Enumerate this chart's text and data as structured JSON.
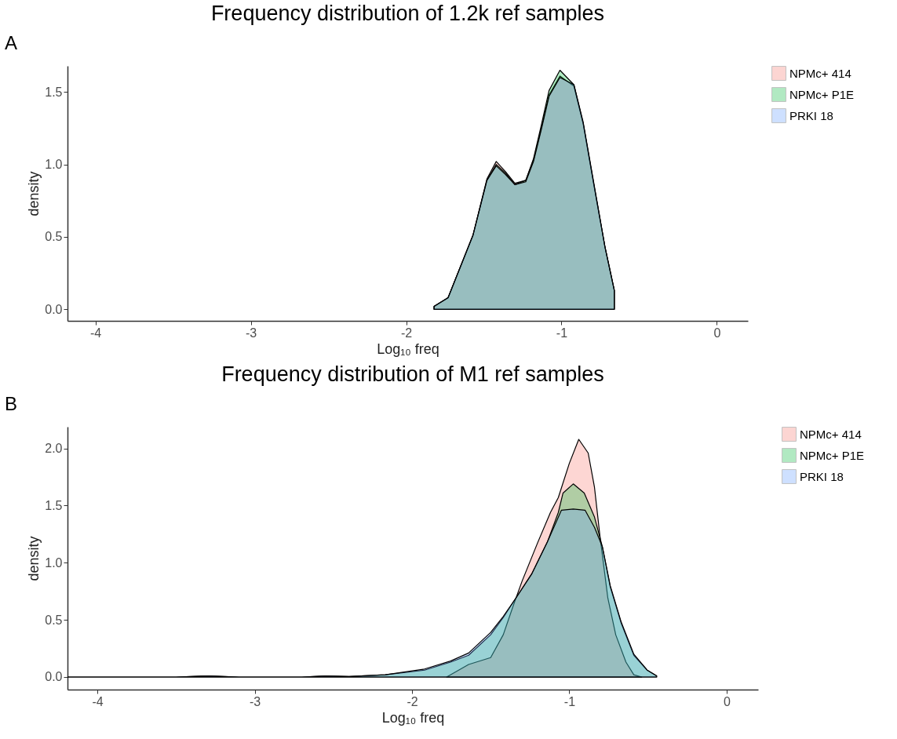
{
  "chart_data": [
    {
      "type": "area",
      "title": "Frequency distribution of 1.2k ref samples",
      "xlabel": "Log₁₀ freq",
      "ylabel": "density",
      "annotations": [
        "A"
      ],
      "legend": "right",
      "x": [
        -1.82,
        -1.73,
        -1.57,
        -1.48,
        -1.42,
        -1.36,
        -1.3,
        -1.23,
        -1.18,
        -1.13,
        -1.08,
        -1.01,
        -0.92,
        -0.86,
        -0.79,
        -0.72,
        -0.66
      ],
      "series": [
        {
          "name": "NPMc+ 414",
          "color": "#f8766d",
          "values": [
            0.02,
            0.08,
            0.51,
            0.9,
            1.02,
            0.95,
            0.87,
            0.89,
            1.03,
            1.25,
            1.48,
            1.61,
            1.54,
            1.28,
            0.85,
            0.43,
            0.13
          ]
        },
        {
          "name": "NPMc+ P1E",
          "color": "#00ba38",
          "values": [
            0.02,
            0.08,
            0.51,
            0.89,
            1.0,
            0.94,
            0.86,
            0.89,
            1.04,
            1.27,
            1.51,
            1.65,
            1.55,
            1.28,
            0.85,
            0.43,
            0.13
          ]
        },
        {
          "name": "PRKI 18",
          "color": "#619cff",
          "values": [
            0.02,
            0.08,
            0.51,
            0.89,
            0.99,
            0.93,
            0.86,
            0.88,
            1.02,
            1.24,
            1.47,
            1.6,
            1.55,
            1.29,
            0.86,
            0.43,
            0.13
          ]
        }
      ],
      "xlim": [
        -4.18,
        0.2
      ],
      "xticks": [
        -4,
        -3,
        -2,
        -1,
        0
      ],
      "ylim": [
        -0.08,
        1.68
      ],
      "yticks": [
        {
          "value": 0,
          "label": "0.0"
        },
        {
          "value": 0.5,
          "label": "0.5"
        },
        {
          "value": 1,
          "label": "1.0"
        },
        {
          "value": 1.5,
          "label": "1.5"
        }
      ]
    },
    {
      "type": "area",
      "title": "Frequency distribution of M1 ref samples",
      "xlabel": "Log₁₀ freq",
      "ylabel": "density",
      "annotations": [
        "B"
      ],
      "legend": "right",
      "series": [
        {
          "name": "NPMc+ 414",
          "color": "#f8766d",
          "x": [
            -1.78,
            -1.64,
            -1.5,
            -1.42,
            -1.355,
            -1.3,
            -1.2,
            -1.12,
            -1.07,
            -1.0,
            -0.94,
            -0.88,
            -0.84,
            -0.805,
            -0.755,
            -0.705,
            -0.64,
            -0.59,
            -0.54
          ],
          "values": [
            0,
            0.11,
            0.17,
            0.37,
            0.63,
            0.84,
            1.18,
            1.44,
            1.57,
            1.87,
            2.08,
            1.96,
            1.66,
            1.23,
            0.69,
            0.37,
            0.13,
            0.02,
            0
          ]
        },
        {
          "name": "NPMc+ P1E",
          "color": "#00ba38",
          "x": [
            -4.19,
            -3.5,
            -3.29,
            -3.1,
            -2.7,
            -2.55,
            -2.4,
            -2.17,
            -1.92,
            -1.755,
            -1.64,
            -1.5,
            -1.42,
            -1.34,
            -1.24,
            -1.14,
            -1.07,
            -1.04,
            -0.975,
            -0.905,
            -0.84,
            -0.79,
            -0.74,
            -0.67,
            -0.59,
            -0.505,
            -0.445
          ],
          "values": [
            0,
            0,
            0.01,
            0,
            0,
            0.01,
            0.005,
            0.02,
            0.06,
            0.13,
            0.19,
            0.37,
            0.52,
            0.69,
            0.9,
            1.18,
            1.44,
            1.61,
            1.69,
            1.61,
            1.4,
            1.14,
            0.79,
            0.47,
            0.19,
            0.06,
            0.01
          ]
        },
        {
          "name": "PRKI 18",
          "color": "#619cff",
          "x": [
            -4.19,
            -3.5,
            -3.29,
            -3.1,
            -2.7,
            -2.55,
            -2.4,
            -2.17,
            -1.92,
            -1.755,
            -1.64,
            -1.5,
            -1.42,
            -1.34,
            -1.24,
            -1.14,
            -1.05,
            -0.975,
            -0.9,
            -0.84,
            -0.79,
            -0.74,
            -0.67,
            -0.59,
            -0.505,
            -0.445
          ],
          "values": [
            0,
            0,
            0.01,
            0,
            0,
            0.01,
            0.005,
            0.02,
            0.07,
            0.14,
            0.21,
            0.39,
            0.53,
            0.69,
            0.9,
            1.18,
            1.46,
            1.47,
            1.46,
            1.31,
            1.14,
            0.8,
            0.48,
            0.2,
            0.06,
            0.01
          ]
        }
      ],
      "xlim": [
        -4.19,
        0.2
      ],
      "xticks": [
        -4,
        -3,
        -2,
        -1,
        0
      ],
      "ylim": [
        -0.11,
        2.19
      ],
      "yticks": [
        {
          "value": 0,
          "label": "0.0"
        },
        {
          "value": 0.5,
          "label": "0.5"
        },
        {
          "value": 1,
          "label": "1.0"
        },
        {
          "value": 1.5,
          "label": "1.5"
        },
        {
          "value": 2,
          "label": "2.0"
        }
      ]
    }
  ]
}
